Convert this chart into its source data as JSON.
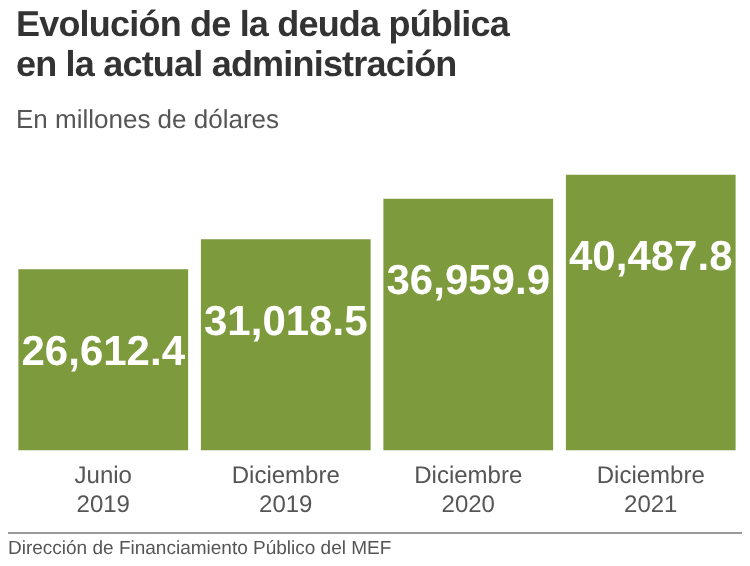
{
  "chart_data": {
    "type": "bar",
    "title": "Evolución de la deuda pública en la actual administración",
    "subtitle": "En millones de dólares",
    "categories": [
      "Junio 2019",
      "Diciembre 2019",
      "Diciembre 2020",
      "Diciembre 2021"
    ],
    "values": [
      26612.4,
      31018.5,
      36959.9,
      40487.8
    ],
    "value_labels": [
      "26,612.4",
      "31,018.5",
      "36,959.9",
      "40,487.8"
    ],
    "color": "#7d9a3c",
    "grid": false,
    "legend": false,
    "annotations": [
      "Dirección de Financiamiento Público del MEF"
    ]
  }
}
